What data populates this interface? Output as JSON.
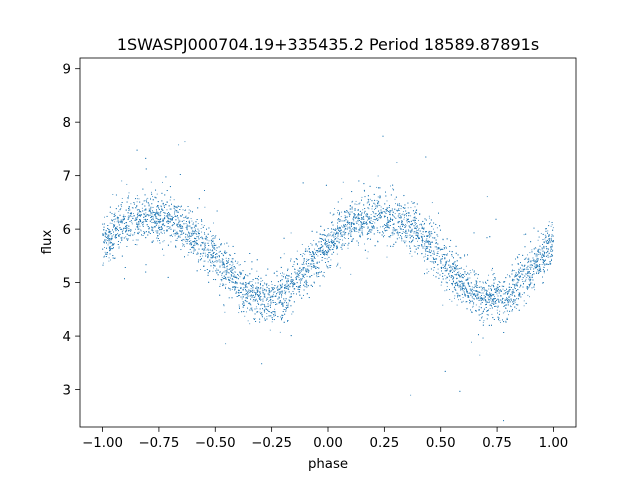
{
  "chart_data": {
    "type": "scatter",
    "title": "1SWASPJ000704.19+335435.2 Period 18589.87891s",
    "xlabel": "phase",
    "ylabel": "flux",
    "xlim": [
      -1.1,
      1.1
    ],
    "ylim": [
      2.3,
      9.2
    ],
    "xticks": [
      -1.0,
      -0.75,
      -0.5,
      -0.25,
      0.0,
      0.25,
      0.5,
      0.75,
      1.0
    ],
    "xtick_labels": [
      "−1.00",
      "−0.75",
      "−0.50",
      "−0.25",
      "0.00",
      "0.25",
      "0.50",
      "0.75",
      "1.00"
    ],
    "yticks": [
      3,
      4,
      5,
      6,
      7,
      8,
      9
    ],
    "ytick_labels": [
      "3",
      "4",
      "5",
      "6",
      "7",
      "8",
      "9"
    ],
    "grid": false,
    "marker_color": "#1f77b4",
    "series": [
      {
        "x": [
          -1.0,
          -0.95,
          -0.9,
          -0.85,
          -0.8,
          -0.75,
          -0.7,
          -0.65,
          -0.6,
          -0.55,
          -0.5,
          -0.45,
          -0.4,
          -0.35,
          -0.3,
          -0.25,
          -0.2,
          -0.15,
          -0.1,
          -0.05,
          0.0,
          0.05,
          0.1,
          0.15,
          0.2,
          0.25,
          0.3,
          0.35,
          0.4,
          0.45,
          0.5,
          0.55,
          0.6,
          0.65,
          0.7,
          0.75,
          0.8,
          0.85,
          0.9,
          0.95,
          1.0
        ],
        "y": [
          5.75,
          5.95,
          6.1,
          6.18,
          6.22,
          6.22,
          6.18,
          6.08,
          5.92,
          5.72,
          5.48,
          5.22,
          4.98,
          4.8,
          4.7,
          4.7,
          4.78,
          4.98,
          5.22,
          5.48,
          5.72,
          5.92,
          6.08,
          6.18,
          6.22,
          6.22,
          6.18,
          6.08,
          5.92,
          5.72,
          5.48,
          5.22,
          4.98,
          4.8,
          4.7,
          4.7,
          4.78,
          4.98,
          5.22,
          5.48,
          5.75
        ],
        "scatter_sigma": 0.22,
        "point_count": 9000
      }
    ]
  }
}
